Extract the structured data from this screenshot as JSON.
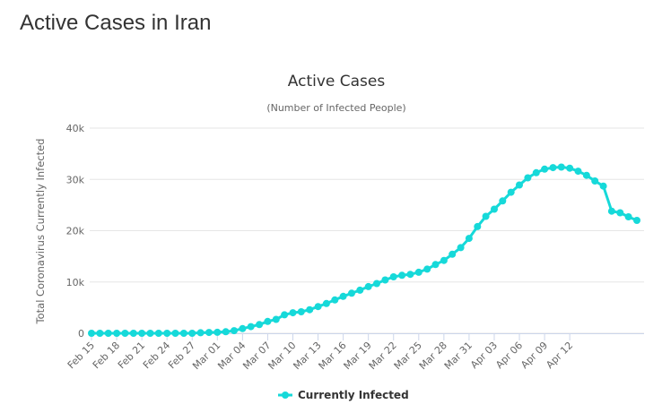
{
  "page": {
    "heading": "Active Cases in Iran"
  },
  "chart_data": {
    "type": "line",
    "title": "Active Cases",
    "subtitle": "(Number of Infected People)",
    "ylabel": "Total Coronavirus Currently Infected",
    "xlabel": "",
    "ylim": [
      0,
      40000
    ],
    "y_ticks": [
      0,
      10000,
      20000,
      30000,
      40000
    ],
    "y_tick_labels": [
      "0",
      "10k",
      "20k",
      "30k",
      "40k"
    ],
    "x_tick_labels": [
      "Feb 15",
      "Feb 18",
      "Feb 21",
      "Feb 24",
      "Feb 27",
      "Mar 01",
      "Mar 04",
      "Mar 07",
      "Mar 10",
      "Mar 13",
      "Mar 16",
      "Mar 19",
      "Mar 22",
      "Mar 25",
      "Mar 28",
      "Mar 31",
      "Apr 03",
      "Apr 06",
      "Apr 09",
      "Apr 12"
    ],
    "x_tick_every": 3,
    "grid": true,
    "legend_position": "bottom-center",
    "color": "#16d9d9",
    "series": [
      {
        "name": "Currently Infected",
        "values": [
          0,
          0,
          0,
          0,
          0,
          0,
          0,
          0,
          0,
          0,
          0,
          0,
          0,
          100,
          150,
          200,
          300,
          500,
          900,
          1300,
          1700,
          2300,
          2700,
          3600,
          4000,
          4200,
          4600,
          5200,
          5800,
          6500,
          7200,
          7800,
          8400,
          9100,
          9700,
          10400,
          11000,
          11300,
          11500,
          11900,
          12500,
          13400,
          14200,
          15400,
          16700,
          18500,
          20800,
          22800,
          24200,
          25800,
          27500,
          28900,
          30300,
          31300,
          32000,
          32300,
          32400,
          32200,
          31600,
          30800,
          29700,
          28700,
          23800,
          23500,
          22700,
          22000
        ]
      }
    ]
  }
}
